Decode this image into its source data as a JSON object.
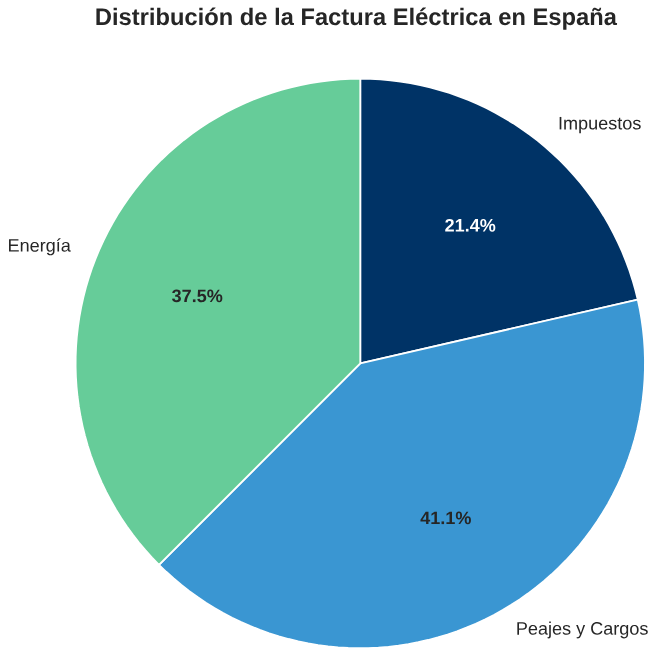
{
  "chart_data": {
    "type": "pie",
    "title": "Distribución de la Factura Eléctrica en España",
    "categories": [
      "Impuestos",
      "Peajes y Cargos",
      "Energía"
    ],
    "values": [
      21.4,
      41.1,
      37.5
    ],
    "colors": [
      "#003366",
      "#3a96d2",
      "#66cc99"
    ],
    "value_labels": [
      "21.4%",
      "41.1%",
      "37.5%"
    ]
  }
}
